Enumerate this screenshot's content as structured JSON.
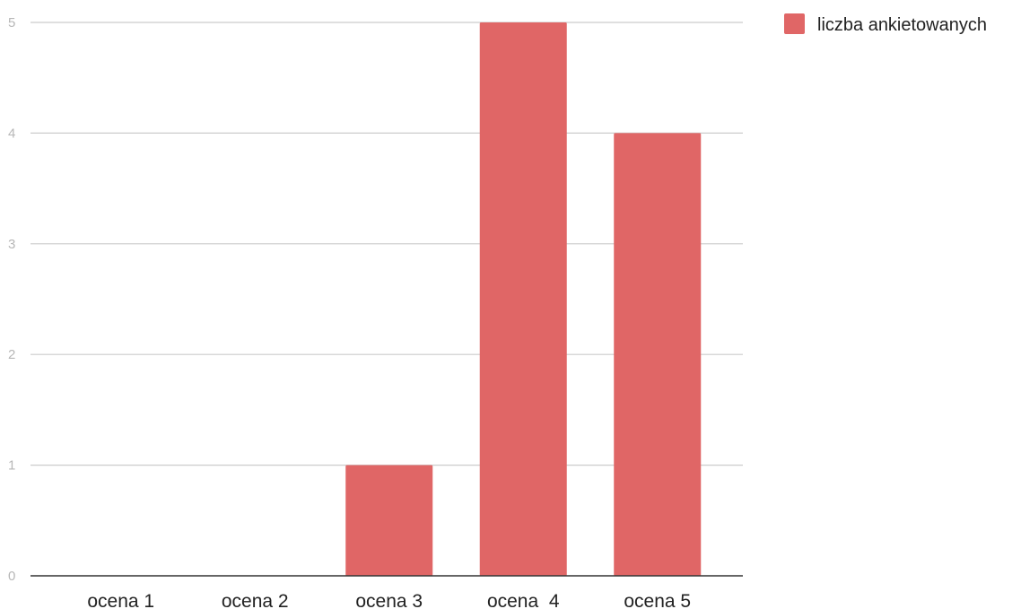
{
  "chart_data": {
    "type": "bar",
    "categories": [
      "ocena 1",
      "ocena 2",
      "ocena 3",
      "ocena  4",
      "ocena 5"
    ],
    "series": [
      {
        "name": "liczba ankietowanych",
        "values": [
          0,
          0,
          1,
          5,
          4
        ],
        "color": "#e06666"
      }
    ],
    "ylim": [
      0,
      5
    ],
    "yticks": [
      "0",
      "1",
      "2",
      "3",
      "4",
      "5"
    ],
    "grid": true,
    "legend": "top-right",
    "colors": {
      "gridline": "#cccccc",
      "axis": "#333333",
      "tick_label": "#b7b7b7"
    }
  }
}
